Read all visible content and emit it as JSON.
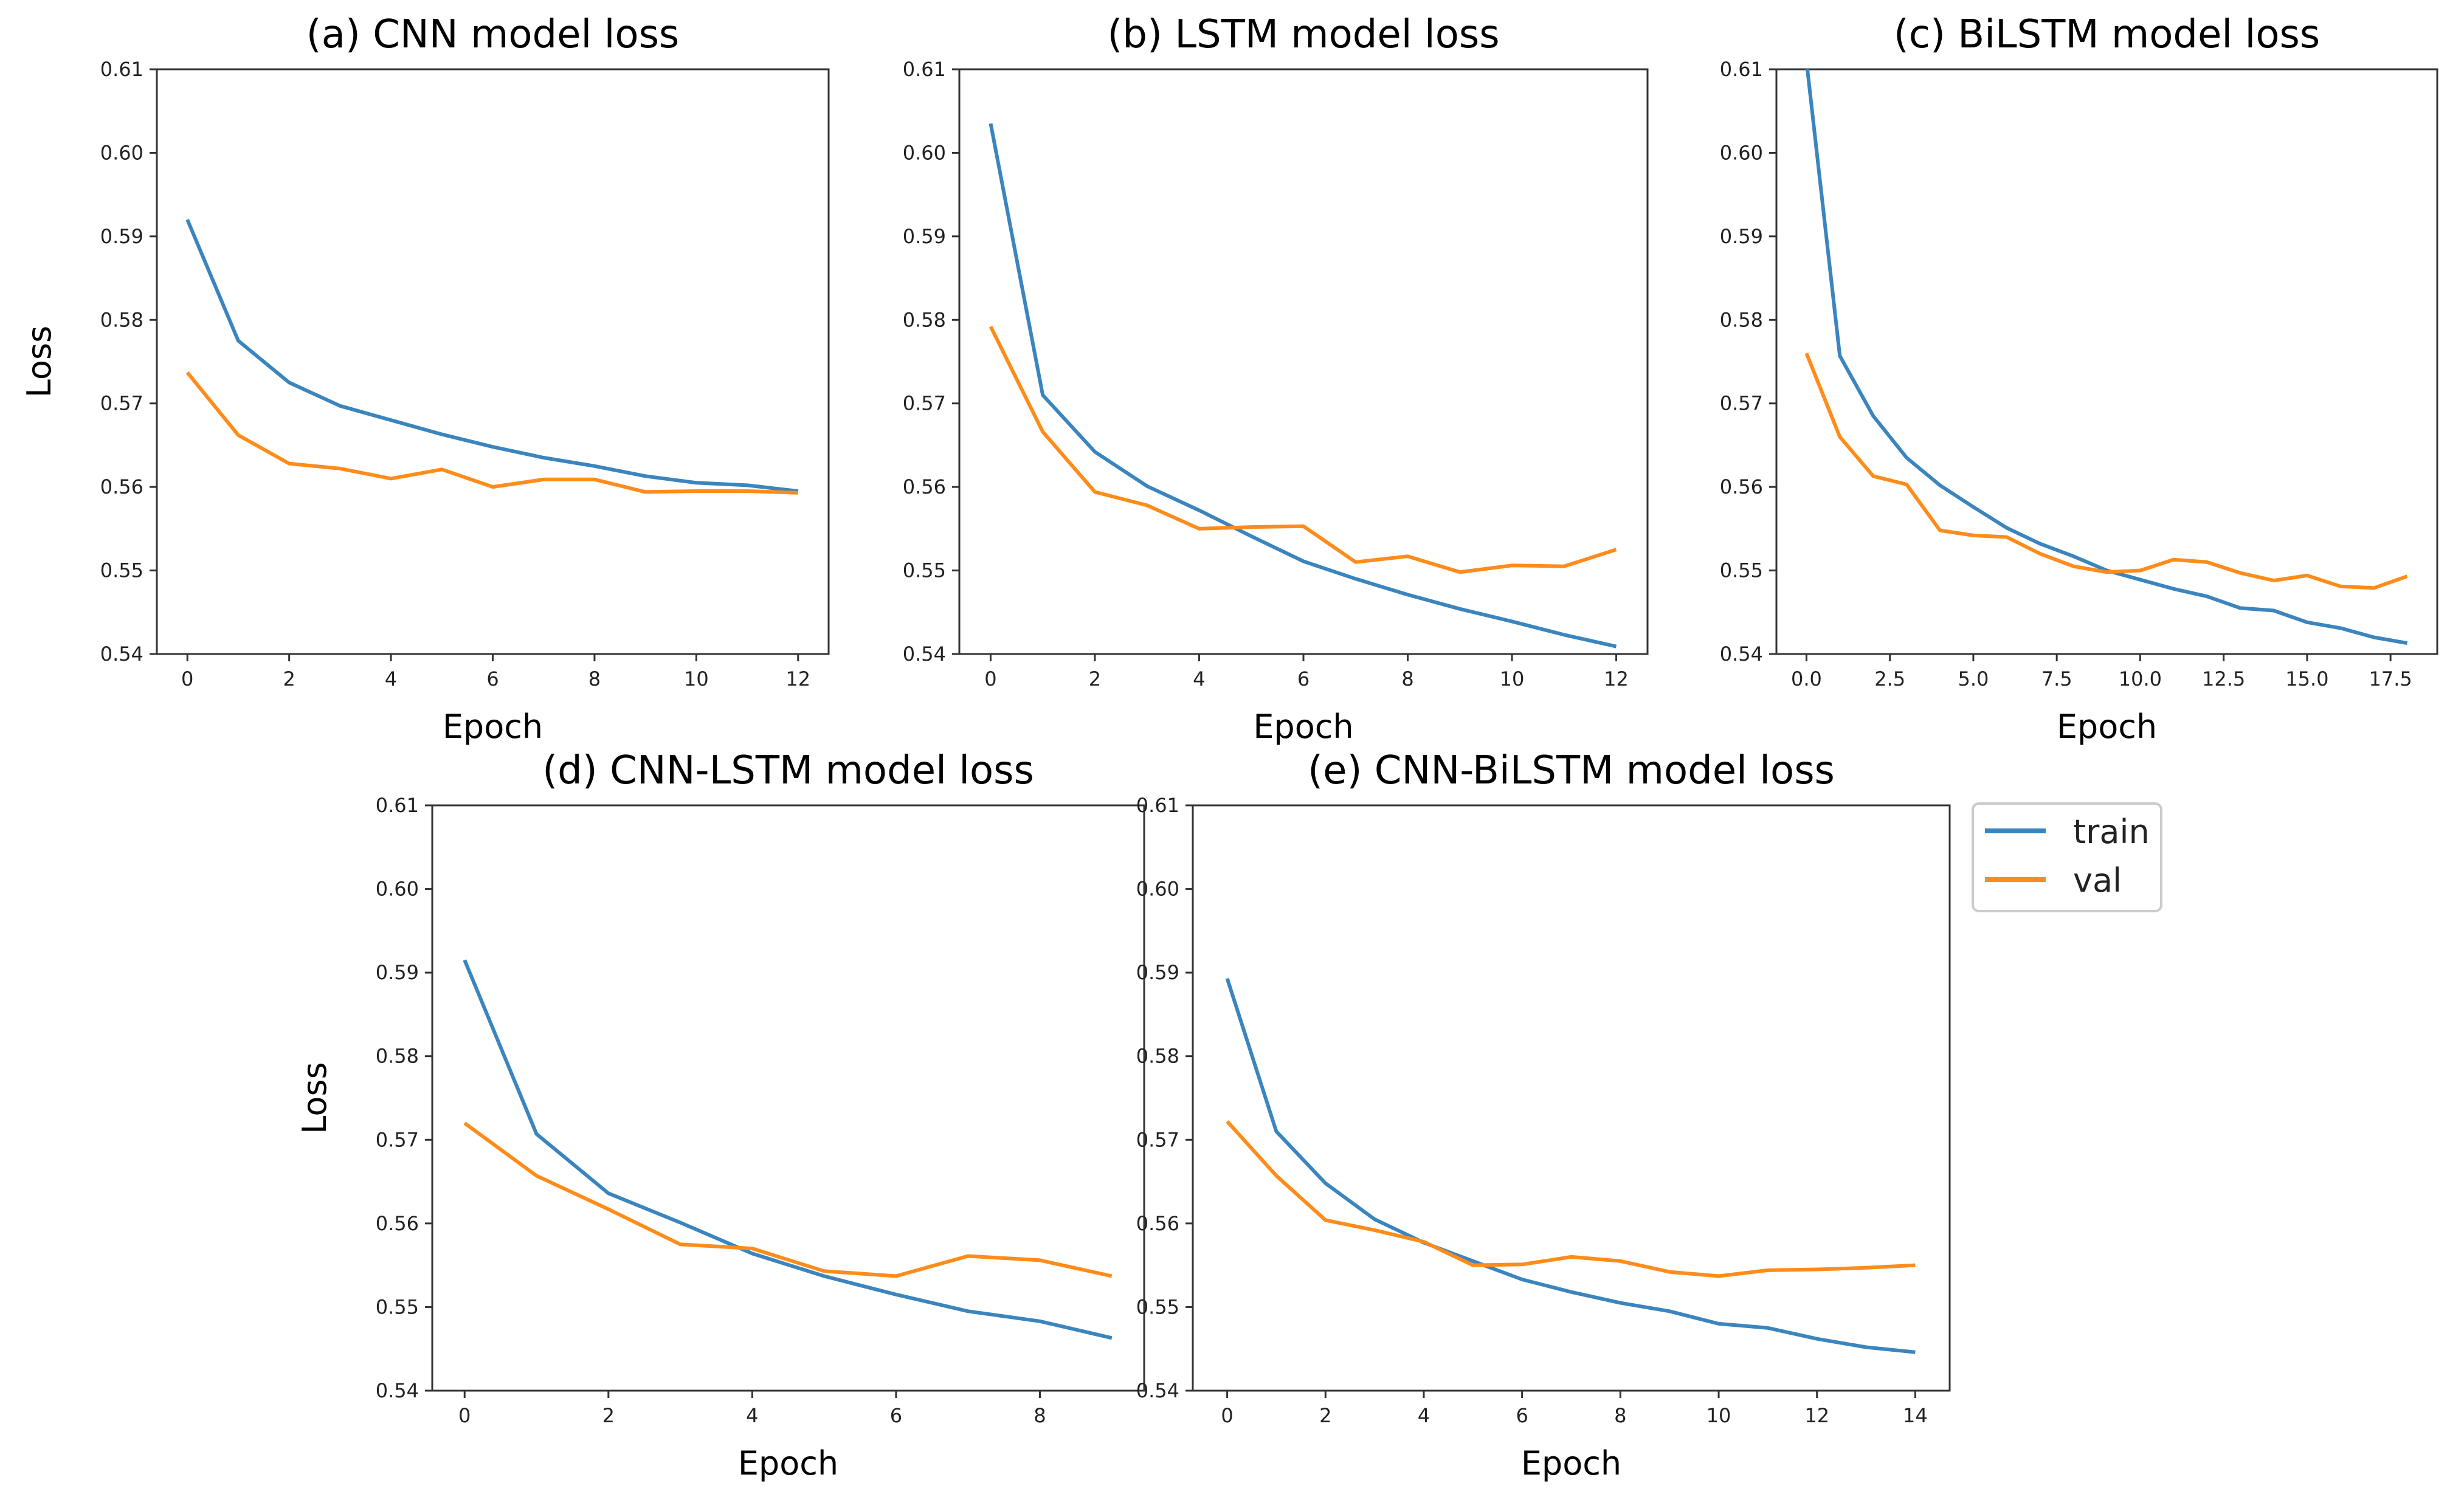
{
  "legend": {
    "entries": [
      {
        "label": "train",
        "color": "#3b85bf"
      },
      {
        "label": "val",
        "color": "#ff8c1a"
      }
    ]
  },
  "chart_data": [
    {
      "type": "line",
      "title": "(a) CNN model loss",
      "xlabel": "Epoch",
      "ylabel": "Loss",
      "xlim": [
        -0.6,
        12.6
      ],
      "ylim": [
        0.54,
        0.61
      ],
      "xticks": [
        0,
        2,
        4,
        6,
        8,
        10,
        12
      ],
      "xtick_labels": [
        "0",
        "2",
        "4",
        "6",
        "8",
        "10",
        "12"
      ],
      "yticks": [
        0.54,
        0.55,
        0.56,
        0.57,
        0.58,
        0.59,
        0.6,
        0.61
      ],
      "ytick_labels": [
        "0.54",
        "0.55",
        "0.56",
        "0.57",
        "0.58",
        "0.59",
        "0.60",
        "0.61"
      ],
      "x": [
        0,
        1,
        2,
        3,
        4,
        5,
        6,
        7,
        8,
        9,
        10,
        11,
        12
      ],
      "series": [
        {
          "name": "train",
          "color": "#3b85bf",
          "values": [
            0.592,
            0.5775,
            0.5725,
            0.5697,
            0.568,
            0.5663,
            0.5648,
            0.5635,
            0.5625,
            0.5613,
            0.5605,
            0.5602,
            0.5595
          ]
        },
        {
          "name": "val",
          "color": "#ff8c1a",
          "values": [
            0.5737,
            0.5662,
            0.5628,
            0.5622,
            0.561,
            0.5621,
            0.56,
            0.5609,
            0.5609,
            0.5594,
            0.5595,
            0.5595,
            0.5593
          ]
        }
      ]
    },
    {
      "type": "line",
      "title": "(b) LSTM model loss",
      "xlabel": "Epoch",
      "ylabel": "",
      "xlim": [
        -0.6,
        12.6
      ],
      "ylim": [
        0.54,
        0.61
      ],
      "xticks": [
        0,
        2,
        4,
        6,
        8,
        10,
        12
      ],
      "xtick_labels": [
        "0",
        "2",
        "4",
        "6",
        "8",
        "10",
        "12"
      ],
      "yticks": [
        0.54,
        0.55,
        0.56,
        0.57,
        0.58,
        0.59,
        0.6,
        0.61
      ],
      "ytick_labels": [
        "0.54",
        "0.55",
        "0.56",
        "0.57",
        "0.58",
        "0.59",
        "0.60",
        "0.61"
      ],
      "x": [
        0,
        1,
        2,
        3,
        4,
        5,
        6,
        7,
        8,
        9,
        10,
        11,
        12
      ],
      "series": [
        {
          "name": "train",
          "color": "#3b85bf",
          "values": [
            0.6035,
            0.571,
            0.5642,
            0.5601,
            0.5572,
            0.5541,
            0.5511,
            0.549,
            0.5471,
            0.5454,
            0.5439,
            0.5423,
            0.5409
          ]
        },
        {
          "name": "val",
          "color": "#ff8c1a",
          "values": [
            0.5792,
            0.5666,
            0.5594,
            0.5578,
            0.555,
            0.5552,
            0.5553,
            0.551,
            0.5517,
            0.5498,
            0.5506,
            0.5505,
            0.5525
          ]
        }
      ]
    },
    {
      "type": "line",
      "title": "(c) BiLSTM model loss",
      "xlabel": "Epoch",
      "ylabel": "",
      "xlim": [
        -0.9,
        18.9
      ],
      "ylim": [
        0.54,
        0.61
      ],
      "xticks": [
        0,
        2.5,
        5,
        7.5,
        10,
        12.5,
        15,
        17.5
      ],
      "xtick_labels": [
        "0.0",
        "2.5",
        "5.0",
        "7.5",
        "10.0",
        "12.5",
        "15.0",
        "17.5"
      ],
      "yticks": [
        0.54,
        0.55,
        0.56,
        0.57,
        0.58,
        0.59,
        0.6,
        0.61
      ],
      "ytick_labels": [
        "0.54",
        "0.55",
        "0.56",
        "0.57",
        "0.58",
        "0.59",
        "0.60",
        "0.61"
      ],
      "x": [
        0,
        1,
        2,
        3,
        4,
        5,
        6,
        7,
        8,
        9,
        10,
        11,
        12,
        13,
        14,
        15,
        16,
        17,
        18
      ],
      "series": [
        {
          "name": "train",
          "color": "#3b85bf",
          "values": [
            0.611,
            0.5757,
            0.5685,
            0.5635,
            0.5602,
            0.5576,
            0.5551,
            0.5532,
            0.5517,
            0.55,
            0.5489,
            0.5478,
            0.5469,
            0.5455,
            0.5452,
            0.5438,
            0.5431,
            0.542,
            0.5413
          ]
        },
        {
          "name": "val",
          "color": "#ff8c1a",
          "values": [
            0.576,
            0.566,
            0.5613,
            0.5603,
            0.5548,
            0.5542,
            0.554,
            0.552,
            0.5505,
            0.5498,
            0.55,
            0.5513,
            0.551,
            0.5497,
            0.5488,
            0.5494,
            0.5481,
            0.5479,
            0.5493
          ]
        }
      ]
    },
    {
      "type": "line",
      "title": "(d) CNN-LSTM model loss",
      "xlabel": "Epoch",
      "ylabel": "Loss",
      "xlim": [
        -0.45,
        9.45
      ],
      "ylim": [
        0.54,
        0.61
      ],
      "xticks": [
        0,
        2,
        4,
        6,
        8
      ],
      "xtick_labels": [
        "0",
        "2",
        "4",
        "6",
        "8"
      ],
      "yticks": [
        0.54,
        0.55,
        0.56,
        0.57,
        0.58,
        0.59,
        0.6,
        0.61
      ],
      "ytick_labels": [
        "0.54",
        "0.55",
        "0.56",
        "0.57",
        "0.58",
        "0.59",
        "0.60",
        "0.61"
      ],
      "x": [
        0,
        1,
        2,
        3,
        4,
        5,
        6,
        7,
        8,
        9
      ],
      "series": [
        {
          "name": "train",
          "color": "#3b85bf",
          "values": [
            0.5915,
            0.5707,
            0.5636,
            0.5601,
            0.5564,
            0.5537,
            0.5515,
            0.5495,
            0.5483,
            0.5463
          ]
        },
        {
          "name": "val",
          "color": "#ff8c1a",
          "values": [
            0.572,
            0.5657,
            0.5617,
            0.5575,
            0.557,
            0.5543,
            0.5537,
            0.5561,
            0.5556,
            0.5537
          ]
        }
      ]
    },
    {
      "type": "line",
      "title": "(e) CNN-BiLSTM model loss",
      "xlabel": "Epoch",
      "ylabel": "",
      "xlim": [
        -0.7,
        14.7
      ],
      "ylim": [
        0.54,
        0.61
      ],
      "xticks": [
        0,
        2,
        4,
        6,
        8,
        10,
        12,
        14
      ],
      "xtick_labels": [
        "0",
        "2",
        "4",
        "6",
        "8",
        "10",
        "12",
        "14"
      ],
      "yticks": [
        0.54,
        0.55,
        0.56,
        0.57,
        0.58,
        0.59,
        0.6,
        0.61
      ],
      "ytick_labels": [
        "0.54",
        "0.55",
        "0.56",
        "0.57",
        "0.58",
        "0.59",
        "0.60",
        "0.61"
      ],
      "x": [
        0,
        1,
        2,
        3,
        4,
        5,
        6,
        7,
        8,
        9,
        10,
        11,
        12,
        13,
        14
      ],
      "series": [
        {
          "name": "train",
          "color": "#3b85bf",
          "values": [
            0.5893,
            0.571,
            0.5648,
            0.5605,
            0.5577,
            0.5555,
            0.5533,
            0.5518,
            0.5505,
            0.5495,
            0.548,
            0.5475,
            0.5462,
            0.5452,
            0.5446
          ]
        },
        {
          "name": "val",
          "color": "#ff8c1a",
          "values": [
            0.5722,
            0.5657,
            0.5604,
            0.5592,
            0.5578,
            0.555,
            0.5551,
            0.556,
            0.5555,
            0.5542,
            0.5537,
            0.5544,
            0.5545,
            0.5547,
            0.555
          ]
        }
      ]
    }
  ]
}
